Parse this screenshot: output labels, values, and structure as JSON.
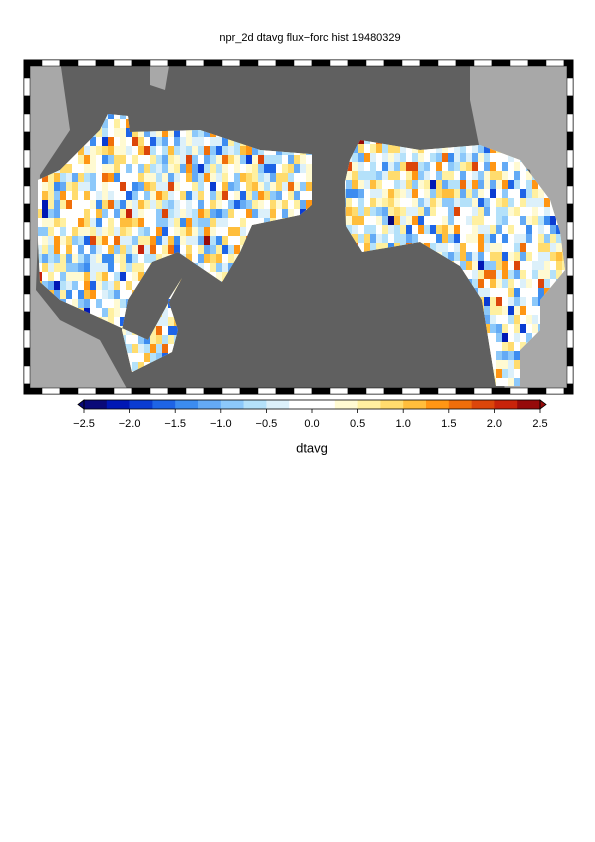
{
  "map": {
    "title": "npr_2d dtavg flux−forc hist 19480329",
    "colorbar": {
      "label": "dtavg",
      "lim": [
        -2.5,
        2.5
      ],
      "ticks": [
        {
          "value": -2.5,
          "label": "−2.5"
        },
        {
          "value": -2.0,
          "label": "−2.0"
        },
        {
          "value": -1.5,
          "label": "−1.5"
        },
        {
          "value": -1.0,
          "label": "−1.0"
        },
        {
          "value": -0.5,
          "label": "−0.5"
        },
        {
          "value": 0.0,
          "label": "0.0"
        },
        {
          "value": 0.5,
          "label": "0.5"
        },
        {
          "value": 1.0,
          "label": "1.0"
        },
        {
          "value": 1.5,
          "label": "1.5"
        },
        {
          "value": 2.0,
          "label": "2.0"
        },
        {
          "value": 2.5,
          "label": "2.5"
        }
      ],
      "colors": [
        "#0a0a78",
        "#0018b4",
        "#0a3cd2",
        "#1e64e6",
        "#3c8cf0",
        "#64aaf5",
        "#8cc8fa",
        "#b4e1fa",
        "#dcf0fa",
        "#ffffff",
        "#ffffff",
        "#fffad2",
        "#fff0a0",
        "#ffdc6e",
        "#ffbe3c",
        "#ff9614",
        "#f06e0a",
        "#dc460a",
        "#c8230a",
        "#960a0a"
      ]
    }
  }
}
